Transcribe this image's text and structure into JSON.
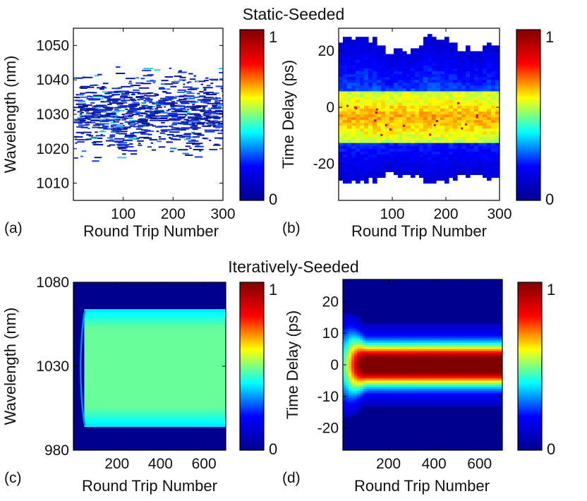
{
  "figure": {
    "section_top_title": "Static-Seeded",
    "section_bottom_title": "Iteratively-Seeded"
  },
  "colormap": {
    "name": "jet",
    "stops": [
      "#00008f",
      "#0000ff",
      "#00ffff",
      "#ffff00",
      "#ff0000",
      "#800000"
    ]
  },
  "chart_data": [
    {
      "panel": "a",
      "panel_label": "(a)",
      "type": "heatmap",
      "title": "",
      "xlabel": "Round Trip Number",
      "ylabel": "Wavelength (nm)",
      "xlim": [
        0,
        300
      ],
      "ylim": [
        1005,
        1055
      ],
      "xticks": [
        100,
        200,
        300
      ],
      "yticks": [
        1010,
        1020,
        1030,
        1040,
        1050
      ],
      "colorbar": {
        "min": 0,
        "max": 1,
        "min_label": "0",
        "max_label": "1"
      },
      "description_values": {
        "signal_band_nm": [
          1015,
          1046
        ],
        "peak_intensity": 0.3
      }
    },
    {
      "panel": "b",
      "panel_label": "(b)",
      "type": "heatmap",
      "title": "",
      "xlabel": "Round Trip Number",
      "ylabel": "Time Delay (ps)",
      "xlim": [
        0,
        300
      ],
      "ylim": [
        -33,
        28
      ],
      "xticks": [
        100,
        200,
        300
      ],
      "yticks": [
        -20,
        0,
        20
      ],
      "colorbar": {
        "min": 0,
        "max": 1,
        "min_label": "0",
        "max_label": "1"
      },
      "description_values": {
        "signal_band_ps": [
          -25,
          22
        ],
        "core_band_ps": [
          -12,
          5
        ],
        "peak_intensity": 0.85
      }
    },
    {
      "panel": "c",
      "panel_label": "(c)",
      "type": "heatmap",
      "title": "",
      "xlabel": "Round Trip Number",
      "ylabel": "Wavelength (nm)",
      "xlim": [
        0,
        700
      ],
      "ylim": [
        980,
        1080
      ],
      "xticks": [
        200,
        400,
        600
      ],
      "yticks": [
        980,
        1030,
        1080
      ],
      "colorbar": {
        "min": 0,
        "max": 1,
        "min_label": "0",
        "max_label": "1"
      },
      "description_values": {
        "band_nm": [
          994,
          1064
        ],
        "band_start_round_trip": 50,
        "plateau_intensity": 0.42
      }
    },
    {
      "panel": "d",
      "panel_label": "(d)",
      "type": "heatmap",
      "title": "",
      "xlabel": "Round Trip Number",
      "ylabel": "Time Delay (ps)",
      "xlim": [
        0,
        700
      ],
      "ylim": [
        -27,
        27
      ],
      "xticks": [
        200,
        400,
        600
      ],
      "yticks": [
        -20,
        -10,
        0,
        10,
        20
      ],
      "colorbar": {
        "min": 0,
        "max": 1,
        "min_label": "0",
        "max_label": "1"
      },
      "description_values": {
        "pulse_center_ps": 0,
        "steady_state_round_trip": 100,
        "peak_intensity": 1.0
      }
    }
  ]
}
